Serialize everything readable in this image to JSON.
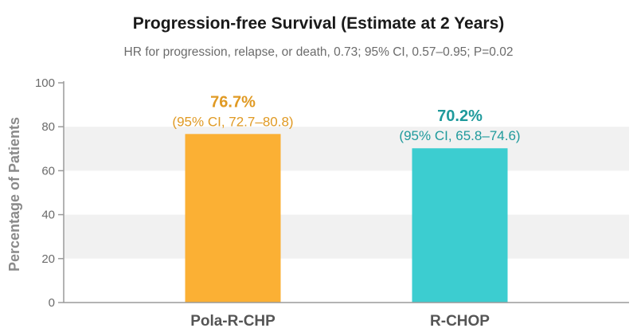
{
  "chart_data": {
    "type": "bar",
    "title": "Progression-free Survival (Estimate at 2 Years)",
    "subtitle": "HR for progression, relapse, or death, 0.73; 95% CI, 0.57–0.95; P=0.02",
    "ylabel": "Percentage of Patients",
    "xlabel": "",
    "ylim": [
      0,
      100
    ],
    "yticks": [
      0,
      20,
      40,
      60,
      80,
      100
    ],
    "grid": "alternating horizontal bands",
    "categories": [
      "Pola-R-CHP",
      "R-CHOP"
    ],
    "values": [
      76.7,
      70.2
    ],
    "value_labels": [
      "76.7%",
      "70.2%"
    ],
    "ci_labels": [
      "(95% CI, 72.7–80.8)",
      "(95% CI, 65.8–74.6)"
    ],
    "colors": [
      "#fbb034",
      "#3ccdd0"
    ],
    "label_colors": [
      "#e09a24",
      "#1f9a9c"
    ],
    "band_color": "#f1f1f1",
    "axis_color": "#9a9a9a"
  }
}
